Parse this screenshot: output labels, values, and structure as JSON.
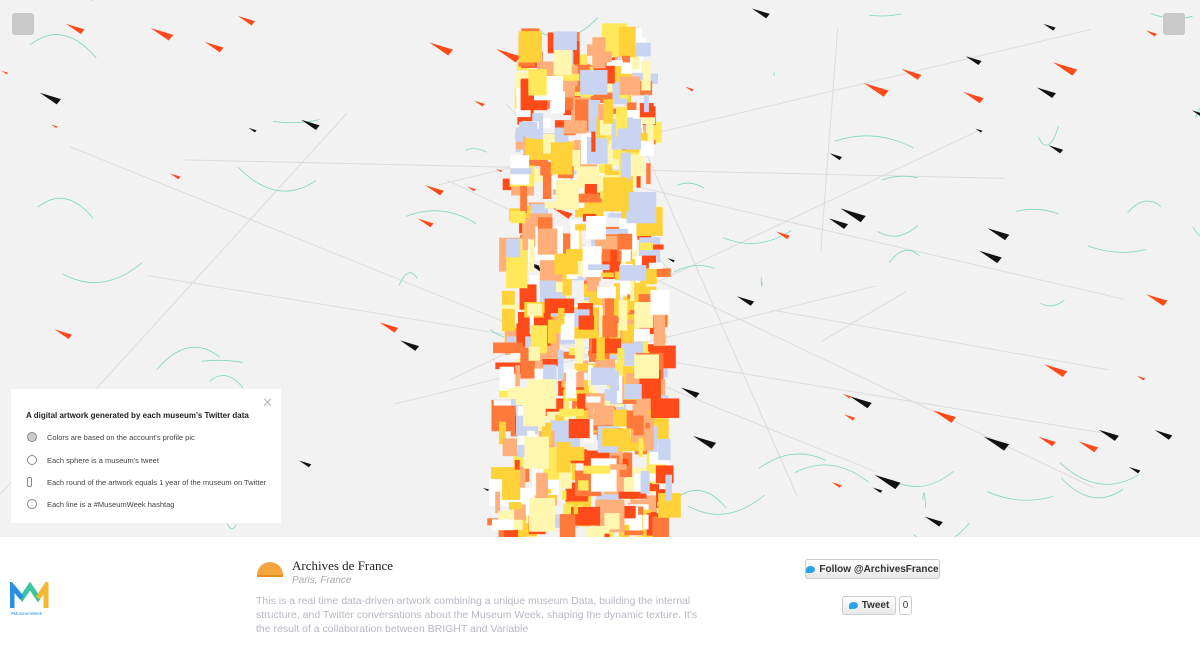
{
  "panel": {
    "title": "A digital artwork generated by each museum's Twitter data",
    "items": [
      "Colors are based on the account's profile pic",
      "Each sphere is a museum's tweet",
      "Each round of the artwork equals 1 year of the museum on Twitter",
      "Each line is a #MuseumWeek hashtag"
    ]
  },
  "profile": {
    "name": "Archives de France",
    "location": "Paris, France",
    "description": "This is a real time data-driven artwork combining a unique museum Data, building the internal structure, and Twitter conversations about the Museum Week, shaping the dynamic texture. It's the result of a collaboration between BRIGHT and Variable"
  },
  "buttons": {
    "follow": "Follow @ArchivesFrance",
    "tweet": "Tweet",
    "tweet_count": 0
  },
  "logo": {
    "tag": "#MuseumWeek"
  }
}
